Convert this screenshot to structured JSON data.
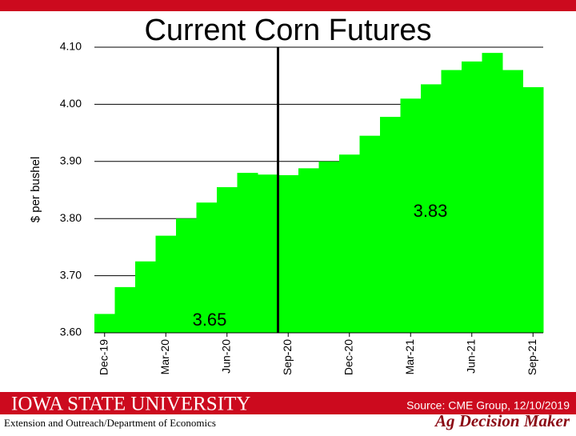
{
  "chart_data": {
    "type": "bar",
    "title": "Current Corn Futures",
    "y_label": "$ per bushel",
    "categories": [
      "Dec-19",
      null,
      null,
      "Mar-20",
      null,
      null,
      "Jun-20",
      null,
      null,
      "Sep-20",
      null,
      null,
      "Dec-20",
      null,
      null,
      "Mar-21",
      null,
      null,
      "Jun-21",
      null,
      null,
      "Sep-21"
    ],
    "values": [
      3.633,
      3.68,
      3.725,
      3.77,
      3.8,
      3.828,
      3.855,
      3.88,
      3.877,
      3.876,
      3.888,
      3.9,
      3.912,
      3.945,
      3.978,
      4.01,
      4.035,
      4.06,
      4.075,
      4.09,
      4.06,
      4.03
    ],
    "color": "#00ff00",
    "ylim": [
      3.6,
      4.1
    ],
    "yticks": [
      {
        "value": 3.6,
        "label": "3.60"
      },
      {
        "value": 3.7,
        "label": "3.70"
      },
      {
        "value": 3.8,
        "label": "3.80"
      },
      {
        "value": 3.9,
        "label": "3.90"
      },
      {
        "value": 4.0,
        "label": "4.00"
      },
      {
        "value": 4.1,
        "label": "4.10"
      }
    ],
    "grid": true,
    "annotations": [
      "3.83",
      "3.65"
    ]
  },
  "footer": {
    "university": "IOWA STATE UNIVERSITY",
    "department": "Extension and Outreach/Department of Economics",
    "source": "Source: CME Group, 12/10/2019",
    "brand": "Ag Decision Maker"
  }
}
